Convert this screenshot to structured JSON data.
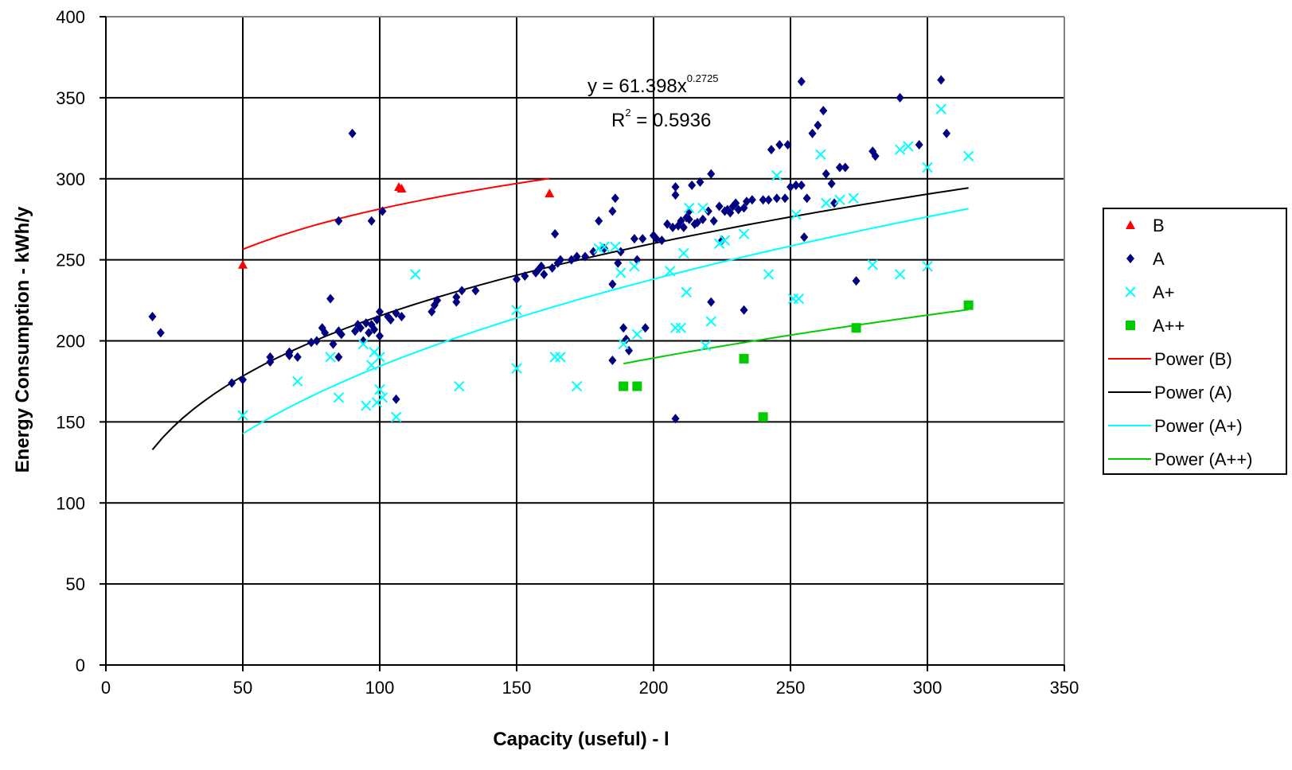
{
  "chart_data": {
    "type": "scatter",
    "xlabel": "Capacity (useful) - l",
    "ylabel": "Energy Consumption - kWh/y",
    "xlim": [
      0,
      350
    ],
    "ylim": [
      0,
      400
    ],
    "x_ticks": [
      "0",
      "50",
      "100",
      "150",
      "200",
      "250",
      "300",
      "350"
    ],
    "y_ticks": [
      "0",
      "50",
      "100",
      "150",
      "200",
      "250",
      "300",
      "350",
      "400"
    ],
    "grid": true,
    "legend_position": "right",
    "annotation": {
      "equation_prefix": "y = 61.398x",
      "equation_exponent": "0.2725",
      "r2_prefix": "R",
      "r2_exp": "2",
      "r2_value": " = 0.5936"
    },
    "series": [
      {
        "name": "B",
        "marker": "triangle",
        "color": "#ff0000",
        "points": [
          [
            50,
            247
          ],
          [
            107,
            295
          ],
          [
            108,
            294
          ],
          [
            162,
            291
          ]
        ]
      },
      {
        "name": "A",
        "marker": "diamond",
        "color": "#000080",
        "points": [
          [
            17,
            215
          ],
          [
            20,
            205
          ],
          [
            46,
            174
          ],
          [
            50,
            176
          ],
          [
            60,
            187
          ],
          [
            60,
            190
          ],
          [
            67,
            191
          ],
          [
            67,
            193
          ],
          [
            70,
            190
          ],
          [
            75,
            199
          ],
          [
            77,
            200
          ],
          [
            79,
            208
          ],
          [
            80,
            205
          ],
          [
            82,
            226
          ],
          [
            83,
            198
          ],
          [
            85,
            190
          ],
          [
            85,
            206
          ],
          [
            86,
            204
          ],
          [
            85,
            274
          ],
          [
            90,
            328
          ],
          [
            91,
            206
          ],
          [
            92,
            210
          ],
          [
            93,
            208
          ],
          [
            94,
            200
          ],
          [
            95,
            211
          ],
          [
            96,
            205
          ],
          [
            97,
            274
          ],
          [
            97,
            210
          ],
          [
            98,
            207
          ],
          [
            99,
            213
          ],
          [
            100,
            203
          ],
          [
            100,
            218
          ],
          [
            101,
            280
          ],
          [
            103,
            215
          ],
          [
            104,
            213
          ],
          [
            106,
            217
          ],
          [
            106,
            164
          ],
          [
            108,
            215
          ],
          [
            119,
            218
          ],
          [
            120,
            222
          ],
          [
            121,
            225
          ],
          [
            128,
            224
          ],
          [
            128,
            227
          ],
          [
            130,
            231
          ],
          [
            135,
            231
          ],
          [
            150,
            238
          ],
          [
            153,
            240
          ],
          [
            157,
            242
          ],
          [
            158,
            244
          ],
          [
            159,
            246
          ],
          [
            160,
            241
          ],
          [
            163,
            245
          ],
          [
            164,
            266
          ],
          [
            165,
            248
          ],
          [
            166,
            250
          ],
          [
            170,
            250
          ],
          [
            172,
            252
          ],
          [
            175,
            252
          ],
          [
            178,
            255
          ],
          [
            180,
            274
          ],
          [
            182,
            257
          ],
          [
            185,
            280
          ],
          [
            185,
            235
          ],
          [
            186,
            288
          ],
          [
            187,
            248
          ],
          [
            188,
            255
          ],
          [
            189,
            208
          ],
          [
            190,
            201
          ],
          [
            191,
            194
          ],
          [
            193,
            263
          ],
          [
            194,
            250
          ],
          [
            196,
            263
          ],
          [
            197,
            208
          ],
          [
            200,
            265
          ],
          [
            200,
            265
          ],
          [
            201,
            263
          ],
          [
            203,
            262
          ],
          [
            205,
            272
          ],
          [
            207,
            270
          ],
          [
            208,
            295
          ],
          [
            208,
            290
          ],
          [
            209,
            271
          ],
          [
            210,
            274
          ],
          [
            211,
            270
          ],
          [
            212,
            276
          ],
          [
            213,
            280
          ],
          [
            213,
            275
          ],
          [
            214,
            296
          ],
          [
            215,
            272
          ],
          [
            216,
            273
          ],
          [
            217,
            298
          ],
          [
            218,
            275
          ],
          [
            220,
            280
          ],
          [
            221,
            303
          ],
          [
            222,
            274
          ],
          [
            224,
            283
          ],
          [
            226,
            280
          ],
          [
            227,
            281
          ],
          [
            228,
            279
          ],
          [
            229,
            283
          ],
          [
            230,
            285
          ],
          [
            231,
            281
          ],
          [
            233,
            282
          ],
          [
            234,
            286
          ],
          [
            236,
            287
          ],
          [
            240,
            287
          ],
          [
            242,
            287
          ],
          [
            243,
            318
          ],
          [
            245,
            288
          ],
          [
            246,
            321
          ],
          [
            248,
            288
          ],
          [
            249,
            321
          ],
          [
            250,
            295
          ],
          [
            252,
            296
          ],
          [
            254,
            296
          ],
          [
            254,
            360
          ],
          [
            255,
            264
          ],
          [
            256,
            288
          ],
          [
            258,
            328
          ],
          [
            260,
            333
          ],
          [
            262,
            342
          ],
          [
            263,
            303
          ],
          [
            265,
            297
          ],
          [
            266,
            285
          ],
          [
            268,
            307
          ],
          [
            270,
            307
          ],
          [
            274,
            237
          ],
          [
            280,
            317
          ],
          [
            281,
            314
          ],
          [
            290,
            350
          ],
          [
            297,
            321
          ],
          [
            305,
            361
          ],
          [
            307,
            328
          ],
          [
            208,
            152
          ],
          [
            221,
            224
          ],
          [
            233,
            219
          ],
          [
            225,
            262
          ],
          [
            185,
            188
          ]
        ]
      },
      {
        "name": "A+",
        "marker": "x",
        "color": "#00ffff",
        "points": [
          [
            50,
            154
          ],
          [
            70,
            175
          ],
          [
            82,
            190
          ],
          [
            85,
            165
          ],
          [
            94,
            198
          ],
          [
            95,
            160
          ],
          [
            97,
            185
          ],
          [
            98,
            193
          ],
          [
            99,
            162
          ],
          [
            100,
            170
          ],
          [
            100,
            190
          ],
          [
            101,
            165
          ],
          [
            106,
            153
          ],
          [
            113,
            241
          ],
          [
            129,
            172
          ],
          [
            150,
            183
          ],
          [
            150,
            219
          ],
          [
            164,
            190
          ],
          [
            166,
            190
          ],
          [
            172,
            172
          ],
          [
            180,
            257
          ],
          [
            182,
            258
          ],
          [
            186,
            258
          ],
          [
            188,
            242
          ],
          [
            189,
            198
          ],
          [
            193,
            246
          ],
          [
            194,
            204
          ],
          [
            206,
            243
          ],
          [
            208,
            208
          ],
          [
            210,
            208
          ],
          [
            211,
            254
          ],
          [
            212,
            230
          ],
          [
            213,
            282
          ],
          [
            218,
            282
          ],
          [
            219,
            197
          ],
          [
            221,
            212
          ],
          [
            226,
            262
          ],
          [
            233,
            266
          ],
          [
            242,
            241
          ],
          [
            245,
            302
          ],
          [
            251,
            226
          ],
          [
            253,
            226
          ],
          [
            261,
            315
          ],
          [
            263,
            285
          ],
          [
            268,
            287
          ],
          [
            273,
            288
          ],
          [
            280,
            247
          ],
          [
            290,
            241
          ],
          [
            290,
            318
          ],
          [
            293,
            320
          ],
          [
            300,
            246
          ],
          [
            300,
            307
          ],
          [
            305,
            343
          ],
          [
            315,
            314
          ],
          [
            252,
            278
          ],
          [
            224,
            260
          ]
        ]
      },
      {
        "name": "A++",
        "marker": "square",
        "color": "#00cc00",
        "points": [
          [
            189,
            172
          ],
          [
            194,
            172
          ],
          [
            233,
            189
          ],
          [
            240,
            153
          ],
          [
            274,
            208
          ],
          [
            315,
            222
          ]
        ]
      }
    ],
    "trendlines": [
      {
        "name": "Power (B)",
        "color": "#ff0000",
        "a": 151.8,
        "b": 0.134,
        "x_range": [
          50,
          162
        ]
      },
      {
        "name": "Power (A)",
        "color": "#000000",
        "a": 61.398,
        "b": 0.2725,
        "x_range": [
          17,
          315
        ]
      },
      {
        "name": "Power (A+)",
        "color": "#00ffff",
        "a": 33.7,
        "b": 0.369,
        "x_range": [
          50,
          315
        ]
      },
      {
        "name": "Power (A++)",
        "color": "#00cc00",
        "a": 34.3,
        "b": 0.3225,
        "x_range": [
          189,
          315
        ]
      }
    ]
  }
}
